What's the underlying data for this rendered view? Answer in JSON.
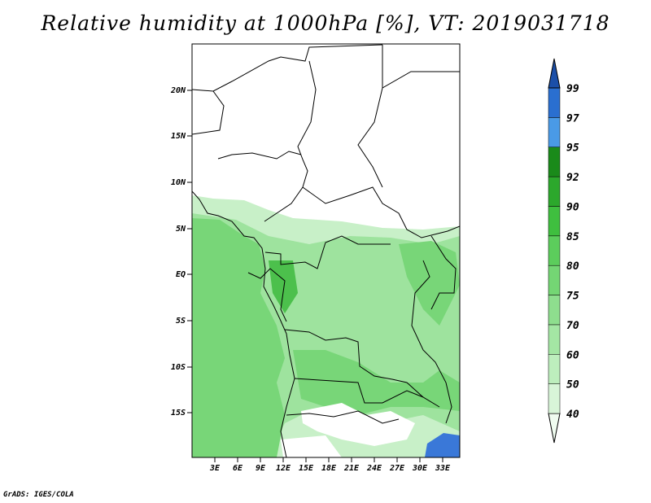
{
  "title": "Relative humidity at 1000hPa [%], VT: 2019031718",
  "footer": "GrADS: IGES/COLA",
  "map": {
    "lat_ticks": [
      "20N",
      "15N",
      "10N",
      "5N",
      "EQ",
      "5S",
      "10S",
      "15S"
    ],
    "lon_ticks": [
      "3E",
      "6E",
      "9E",
      "12E",
      "15E",
      "18E",
      "21E",
      "24E",
      "27E",
      "30E",
      "33E"
    ]
  },
  "colorbar": {
    "levels": [
      "40",
      "50",
      "60",
      "70",
      "75",
      "80",
      "85",
      "90",
      "92",
      "95",
      "97",
      "99"
    ],
    "colors": [
      "#f0fcf0",
      "#d8f5d8",
      "#bdeebd",
      "#a4e6a4",
      "#8ede8e",
      "#74d674",
      "#5ccd5c",
      "#3fbf3f",
      "#2ca82c",
      "#1a8a1a",
      "#4a9ae6",
      "#2a6fd0",
      "#1b4fa8"
    ]
  },
  "colors": {
    "white": "#ffffff",
    "light_green": "#c8f0c8",
    "mid_green": "#9ee39e",
    "green": "#78d678",
    "dark_green": "#4cc04c",
    "blue": "#3a78d8"
  }
}
